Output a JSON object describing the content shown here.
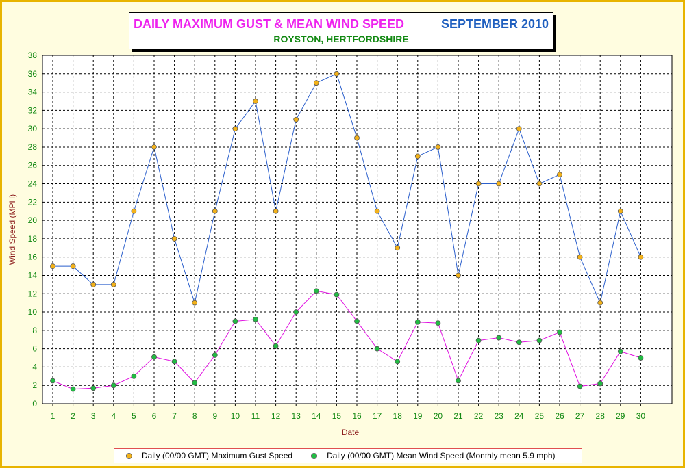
{
  "title": {
    "main": "DAILY MAXIMUM GUST & MEAN WIND SPEED",
    "period": "SEPTEMBER 2010",
    "location": "ROYSTON, HERTFORDSHIRE"
  },
  "colors": {
    "background": "#fffde0",
    "border": "#e8b400",
    "gust_line": "#2b5fcc",
    "gust_marker": "#f3b21a",
    "mean_line": "#e010e0",
    "mean_marker": "#22bb44",
    "axis_text": "#8b1a1a",
    "tick_text": "#118811"
  },
  "chart_data": {
    "type": "line",
    "xlabel": "Date",
    "ylabel": "Wind Speed (MPH)",
    "ylim": [
      0,
      38
    ],
    "y_ticks": [
      0,
      2,
      4,
      6,
      8,
      10,
      12,
      14,
      16,
      18,
      20,
      22,
      24,
      26,
      28,
      30,
      32,
      34,
      36,
      38
    ],
    "categories": [
      "1",
      "2",
      "3",
      "4",
      "5",
      "6",
      "7",
      "8",
      "9",
      "10",
      "11",
      "12",
      "13",
      "14",
      "15",
      "16",
      "17",
      "18",
      "19",
      "20",
      "21",
      "22",
      "23",
      "24",
      "25",
      "26",
      "27",
      "28",
      "29",
      "30"
    ],
    "grid": true,
    "legend_position": "bottom",
    "series": [
      {
        "name": "Daily (00/00 GMT) Maximum Gust Speed",
        "values": [
          15,
          15,
          13,
          13,
          21,
          28,
          18,
          11,
          21,
          30,
          33,
          21,
          31,
          35,
          36,
          29,
          21,
          17,
          27,
          28,
          14,
          24,
          24,
          30,
          24,
          25,
          16,
          11,
          21,
          16
        ]
      },
      {
        "name": "Daily (00/00 GMT) Mean Wind Speed (Monthly mean 5.9 mph)",
        "values": [
          2.5,
          1.6,
          1.7,
          2.0,
          3.0,
          5.1,
          4.6,
          2.3,
          5.3,
          9.0,
          9.2,
          6.3,
          10.0,
          12.3,
          11.9,
          9.0,
          6.0,
          4.6,
          8.9,
          8.8,
          2.5,
          6.9,
          7.2,
          6.7,
          6.9,
          7.8,
          1.9,
          2.2,
          5.7,
          5.0
        ]
      }
    ]
  }
}
